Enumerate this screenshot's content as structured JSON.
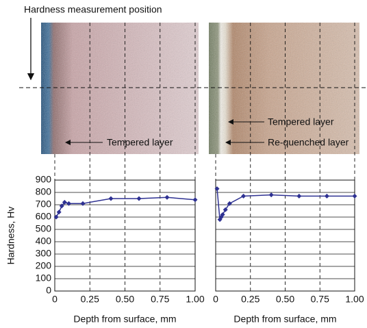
{
  "header": {
    "caption": "Hardness measurement position"
  },
  "images": [
    {
      "labels": [
        "Tempered layer"
      ]
    },
    {
      "labels": [
        "Tempered layer",
        "Re-quenched layer"
      ]
    }
  ],
  "chart_data": [
    {
      "type": "line",
      "ylabel": "Hardness, Hv",
      "xlabel": "Depth from surface, mm",
      "x": [
        0.01,
        0.03,
        0.05,
        0.07,
        0.1,
        0.2,
        0.4,
        0.6,
        0.8,
        1.0
      ],
      "series": [
        {
          "color": "#2e3192",
          "values": [
            600,
            640,
            690,
            720,
            710,
            710,
            750,
            750,
            760,
            740
          ]
        }
      ],
      "xlim": [
        0,
        1
      ],
      "xticks": [
        0,
        0.25,
        {
          "value": 0.5,
          "label": "0.50"
        },
        0.75,
        {
          "value": 1,
          "label": "1.00"
        }
      ],
      "ylim": [
        0,
        900
      ],
      "yticks": [
        0,
        100,
        200,
        300,
        400,
        500,
        600,
        700,
        800,
        900
      ],
      "ytick_labels": true,
      "grid": true
    },
    {
      "type": "line",
      "xlabel": "Depth from surface, mm",
      "x": [
        0.01,
        0.03,
        0.04,
        0.05,
        0.07,
        0.1,
        0.2,
        0.4,
        0.6,
        0.8,
        1.0
      ],
      "series": [
        {
          "color": "#2e3192",
          "values": [
            830,
            580,
            600,
            620,
            660,
            710,
            770,
            780,
            770,
            770,
            770
          ]
        }
      ],
      "xlim": [
        0,
        1
      ],
      "xticks": [
        0,
        0.25,
        {
          "value": 0.5,
          "label": "0.50"
        },
        0.75,
        {
          "value": 1,
          "label": "1.00"
        }
      ],
      "ylim": [
        0,
        900
      ],
      "yticks": [
        0,
        100,
        200,
        300,
        400,
        500,
        600,
        700,
        800,
        900
      ],
      "ytick_labels": false,
      "grid": true
    }
  ]
}
